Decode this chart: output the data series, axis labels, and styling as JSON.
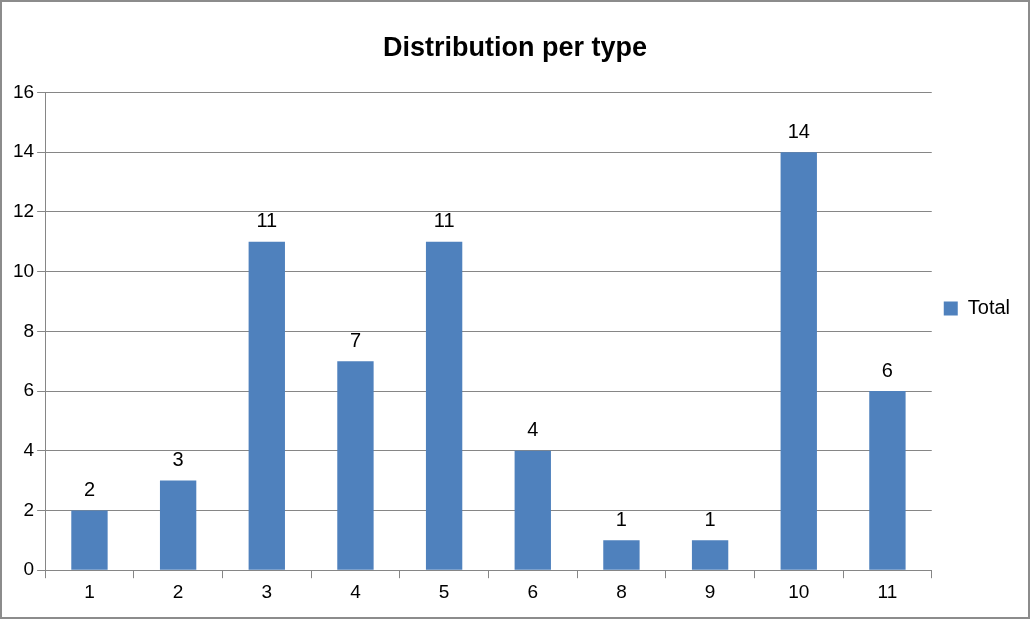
{
  "chart_data": {
    "type": "bar",
    "title": "Distribution per type",
    "categories": [
      "1",
      "2",
      "3",
      "4",
      "5",
      "6",
      "8",
      "9",
      "10",
      "11"
    ],
    "series": [
      {
        "name": "Total",
        "color": "#4f81bd",
        "values": [
          2,
          3,
          11,
          7,
          11,
          4,
          1,
          1,
          14,
          6
        ]
      }
    ],
    "ylim": [
      0,
      16
    ],
    "yticks": [
      0,
      2,
      4,
      6,
      8,
      10,
      12,
      14,
      16
    ],
    "grid": "y",
    "legend": "right",
    "data_labels": true
  }
}
